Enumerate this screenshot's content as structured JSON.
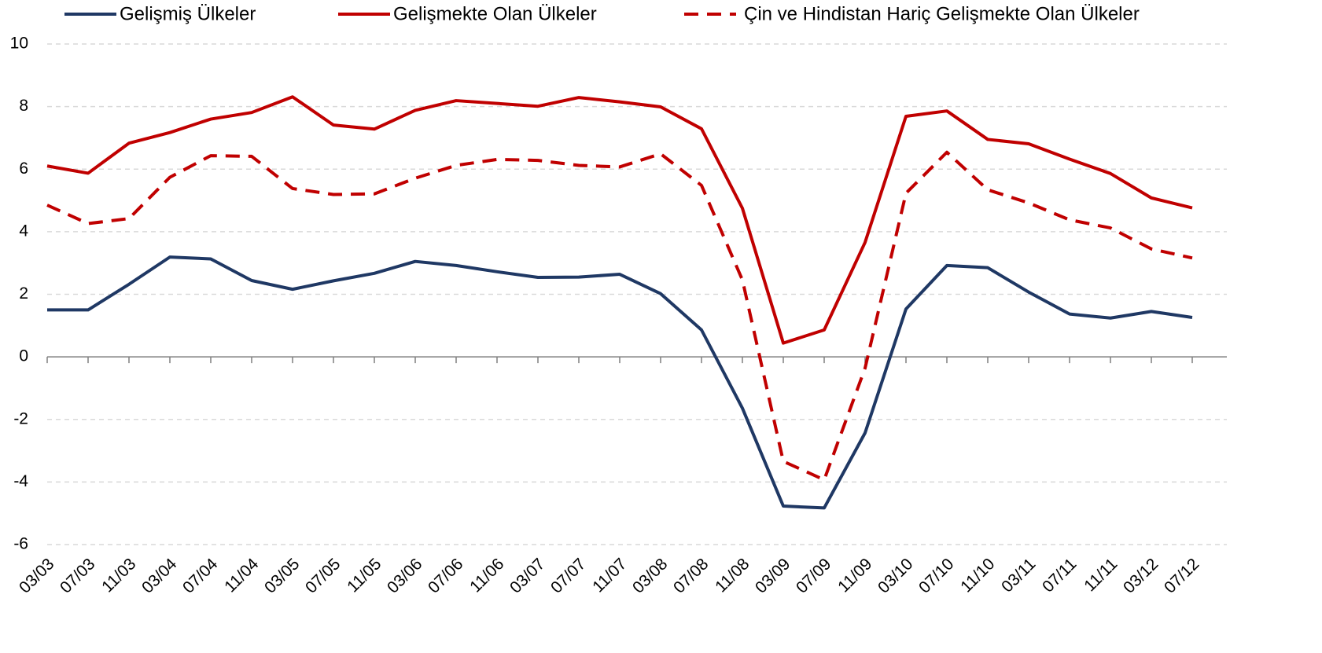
{
  "chart_data": {
    "type": "line",
    "categories": [
      "03/03",
      "07/03",
      "11/03",
      "03/04",
      "07/04",
      "11/04",
      "03/05",
      "07/05",
      "11/05",
      "03/06",
      "07/06",
      "11/06",
      "03/07",
      "07/07",
      "11/07",
      "03/08",
      "07/08",
      "11/08",
      "03/09",
      "07/09",
      "11/09",
      "03/10",
      "07/10",
      "11/10",
      "03/11",
      "07/11",
      "11/11",
      "03/12",
      "07/12"
    ],
    "series": [
      {
        "name": "Gelişmiş Ülkeler",
        "color": "#1f3864",
        "line_style": "solid",
        "values": [
          1.5,
          1.5,
          2.32,
          3.19,
          3.13,
          2.44,
          2.16,
          2.43,
          2.67,
          3.05,
          2.92,
          2.72,
          2.54,
          2.55,
          2.64,
          2.02,
          0.86,
          -1.64,
          -4.77,
          -4.83,
          -2.43,
          1.53,
          2.92,
          2.85,
          2.07,
          1.37,
          1.24,
          1.45,
          1.26
        ]
      },
      {
        "name": "Gelişmekte Olan Ülkeler",
        "color": "#c00000",
        "line_style": "solid",
        "values": [
          6.1,
          5.87,
          6.83,
          7.17,
          7.6,
          7.81,
          8.31,
          7.41,
          7.28,
          7.88,
          8.19,
          8.1,
          8.01,
          8.29,
          8.15,
          7.99,
          7.29,
          4.75,
          0.44,
          0.86,
          3.66,
          7.69,
          7.86,
          6.95,
          6.81,
          6.32,
          5.86,
          5.08,
          4.76
        ]
      },
      {
        "name": "Çin ve Hindistan Hariç  Gelişmekte Olan Ülkeler",
        "color": "#c00000",
        "line_style": "dashed",
        "values": [
          4.85,
          4.26,
          4.42,
          5.74,
          6.43,
          6.41,
          5.38,
          5.19,
          5.21,
          5.71,
          6.12,
          6.31,
          6.28,
          6.12,
          6.07,
          6.49,
          5.48,
          2.46,
          -3.34,
          -3.93,
          -0.36,
          5.23,
          6.54,
          5.34,
          4.92,
          4.38,
          4.12,
          3.45,
          3.16
        ]
      }
    ],
    "ylim": [
      -6,
      10
    ],
    "yticks": [
      -6,
      -4,
      -2,
      0,
      2,
      4,
      6,
      8,
      10
    ],
    "grid": true,
    "legend": "top"
  }
}
